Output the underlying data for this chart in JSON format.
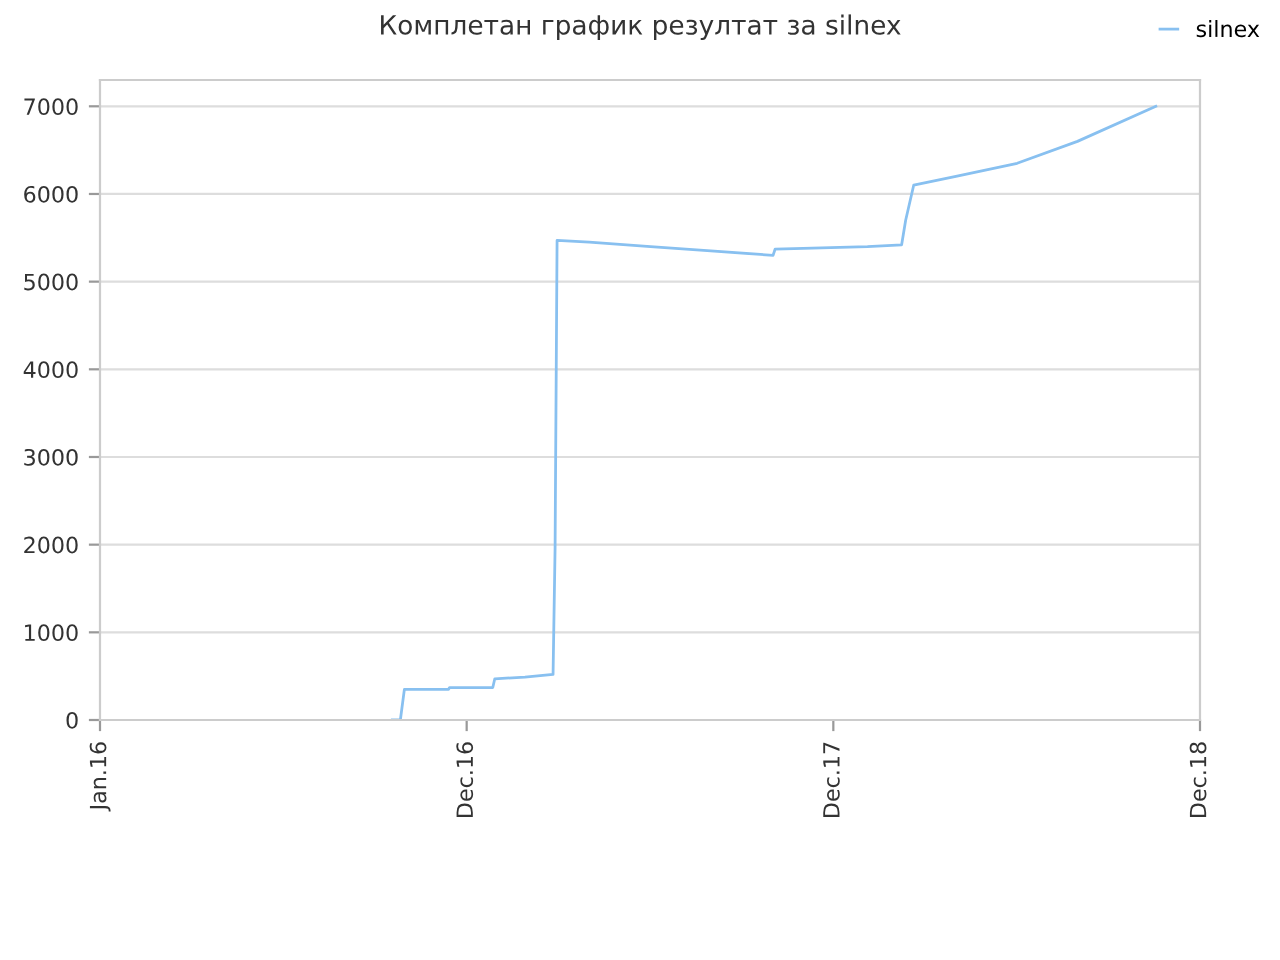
{
  "chart_data": {
    "type": "line",
    "title": "Комплетан график резултат за silnex",
    "series": [
      {
        "name": "silnex",
        "color": "#88c0f0",
        "x": [
          "2016-10-18",
          "2016-10-26",
          "2016-10-30",
          "2016-12-13",
          "2016-12-14",
          "2017-01-26",
          "2017-01-28",
          "2017-02-27",
          "2017-03-27",
          "2017-03-29",
          "2017-03-31",
          "2017-05-02",
          "2017-07-02",
          "2017-08-31",
          "2017-11-01",
          "2017-11-03",
          "2017-12-01",
          "2018-02-03",
          "2018-03-09",
          "2018-03-13",
          "2018-03-21",
          "2018-05-02",
          "2018-07-02",
          "2018-08-31",
          "2018-11-17"
        ],
        "values": [
          0,
          0,
          350,
          350,
          370,
          370,
          470,
          490,
          520,
          1950,
          5470,
          5450,
          5400,
          5350,
          5300,
          5370,
          5380,
          5400,
          5420,
          5700,
          6100,
          6200,
          6350,
          6600,
          7000
        ]
      }
    ],
    "xlim": [
      "2016-01-01",
      "2018-12-31"
    ],
    "xticks": [
      {
        "value": "2016-01-01",
        "label": "Jan.16"
      },
      {
        "value": "2016-12-31",
        "label": "Dec.16"
      },
      {
        "value": "2017-12-31",
        "label": "Dec.17"
      },
      {
        "value": "2018-12-31",
        "label": "Dec.18"
      }
    ],
    "ylim": [
      0,
      7300
    ],
    "yticks": [
      0,
      1000,
      2000,
      3000,
      4000,
      5000,
      6000,
      7000
    ],
    "grid": "y",
    "legend": "top right"
  }
}
